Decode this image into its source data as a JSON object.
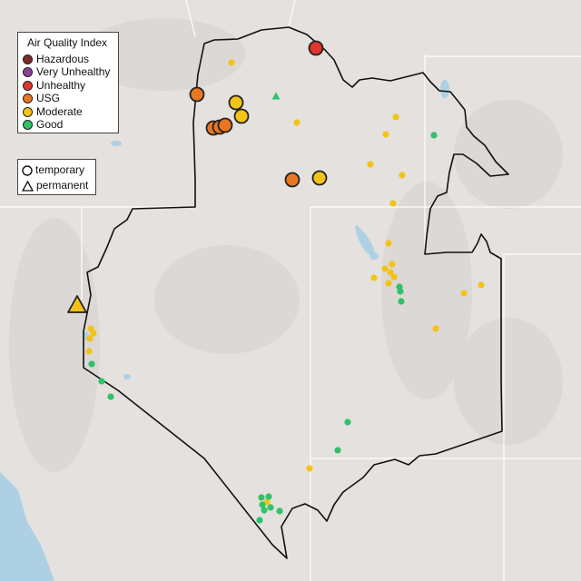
{
  "legend": {
    "title": "Air Quality Index",
    "items": [
      {
        "label": "Hazardous",
        "color": "#7e2a25"
      },
      {
        "label": "Very Unhealthy",
        "color": "#8e3f98"
      },
      {
        "label": "Unhealthy",
        "color": "#e0342d"
      },
      {
        "label": "USG",
        "color": "#e87722"
      },
      {
        "label": "Moderate",
        "color": "#f3c316"
      },
      {
        "label": "Good",
        "color": "#2ec26a"
      }
    ]
  },
  "monitor_type_legend": {
    "items": [
      {
        "label": "temporary",
        "icon": "circle-icon"
      },
      {
        "label": "permanent",
        "icon": "triangle-icon"
      }
    ]
  },
  "colors": {
    "background": "#e4e1de",
    "boundary": "#111111",
    "state_lines": "#ffffff",
    "water": "#aed0e4"
  }
}
